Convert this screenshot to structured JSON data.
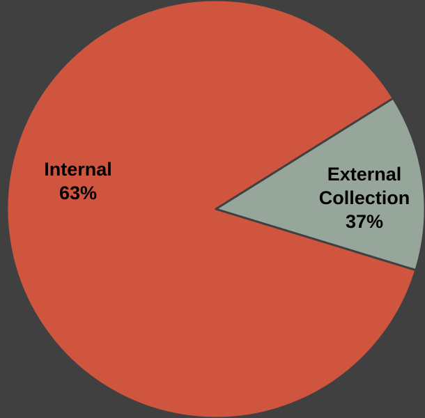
{
  "chart_data": {
    "type": "pie",
    "title": "",
    "slices": [
      {
        "label_lines": [
          "Internal",
          "63%"
        ],
        "value": 63,
        "color": "#D0553F"
      },
      {
        "label_lines": [
          "External",
          "Collection",
          "37%"
        ],
        "value": 37,
        "color": "#96A69B"
      }
    ],
    "background": "#404040",
    "slice_border_color": "#404040"
  }
}
